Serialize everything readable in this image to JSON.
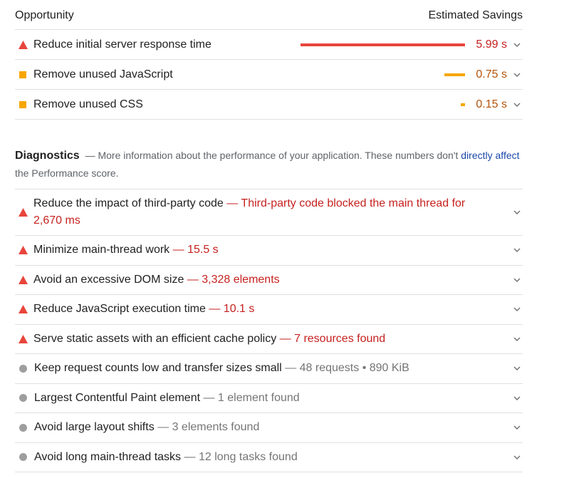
{
  "opportunity": {
    "header_left": "Opportunity",
    "header_right": "Estimated Savings",
    "items": [
      {
        "icon": "warning-triangle-icon",
        "title": "Reduce initial server response time",
        "saving": "5.99 s",
        "bar_fraction": 1.0,
        "color": "#e8453c",
        "text_color": "#c5221f"
      },
      {
        "icon": "orange-square-icon",
        "title": "Remove unused JavaScript",
        "saving": "0.75 s",
        "bar_fraction": 0.125,
        "color": "#f7a600",
        "text_color": "#b45309"
      },
      {
        "icon": "orange-square-icon",
        "title": "Remove unused CSS",
        "saving": "0.15 s",
        "bar_fraction": 0.025,
        "color": "#f7a600",
        "text_color": "#b45309"
      }
    ]
  },
  "diagnostics": {
    "title": "Diagnostics",
    "desc_before": "— More information about the performance of your application. These numbers don't ",
    "link_text": "directly affect",
    "desc_after": " the Performance score.",
    "items": [
      {
        "icon": "warning-triangle-icon",
        "title": "Reduce the impact of third-party code",
        "detail": "— Third-party code blocked the main thread for 2,670 ms",
        "severity": "fail"
      },
      {
        "icon": "warning-triangle-icon",
        "title": "Minimize main-thread work",
        "detail": "— 15.5 s",
        "severity": "fail"
      },
      {
        "icon": "warning-triangle-icon",
        "title": "Avoid an excessive DOM size",
        "detail": "— 3,328 elements",
        "severity": "fail"
      },
      {
        "icon": "warning-triangle-icon",
        "title": "Reduce JavaScript execution time",
        "detail": "— 10.1 s",
        "severity": "fail"
      },
      {
        "icon": "warning-triangle-icon",
        "title": "Serve static assets with an efficient cache policy",
        "detail": "— 7 resources found",
        "severity": "fail"
      },
      {
        "icon": "gray-circle-icon",
        "title": "Keep request counts low and transfer sizes small",
        "detail": "— 48 requests • 890 KiB",
        "severity": "info"
      },
      {
        "icon": "gray-circle-icon",
        "title": "Largest Contentful Paint element",
        "detail": "— 1 element found",
        "severity": "info"
      },
      {
        "icon": "gray-circle-icon",
        "title": "Avoid large layout shifts",
        "detail": "— 3 elements found",
        "severity": "info"
      },
      {
        "icon": "gray-circle-icon",
        "title": "Avoid long main-thread tasks",
        "detail": "— 12 long tasks found",
        "severity": "info"
      }
    ]
  }
}
